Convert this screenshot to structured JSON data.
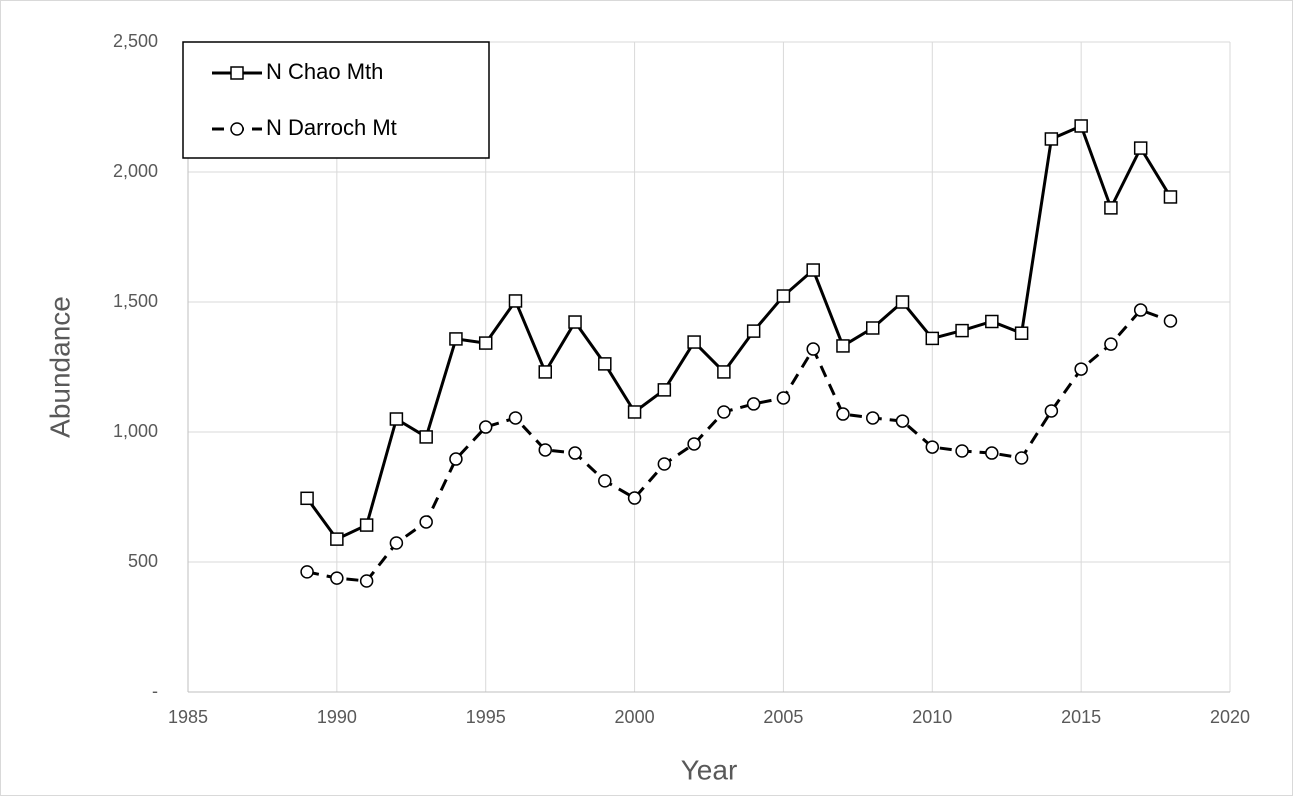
{
  "chart_data": {
    "type": "line",
    "x_label": "Year",
    "y_label": "Abundance",
    "x": [
      1989,
      1990,
      1991,
      1992,
      1993,
      1994,
      1995,
      1996,
      1997,
      1998,
      1999,
      2000,
      2001,
      2002,
      2003,
      2004,
      2005,
      2006,
      2007,
      2008,
      2009,
      2010,
      2011,
      2012,
      2013,
      2014,
      2015,
      2016,
      2017,
      2018
    ],
    "series": [
      {
        "name": "N Chao Mth",
        "color": "#000000",
        "marker": "square",
        "dash": false,
        "values": [
          745,
          588,
          642,
          1050,
          981,
          1358,
          1342,
          1504,
          1231,
          1423,
          1262,
          1077,
          1162,
          1346,
          1231,
          1388,
          1523,
          1623,
          1331,
          1400,
          1500,
          1360,
          1390,
          1425,
          1380,
          2127,
          2177,
          1862,
          2092,
          1904
        ]
      },
      {
        "name": "N Darroch Mt",
        "color": "#000000",
        "marker": "circle",
        "dash": true,
        "values": [
          462,
          438,
          427,
          573,
          654,
          896,
          1019,
          1054,
          931,
          919,
          812,
          746,
          877,
          954,
          1077,
          1108,
          1131,
          1319,
          1069,
          1054,
          1042,
          942,
          927,
          919,
          900,
          1081,
          1242,
          1338,
          1469,
          1427
        ]
      }
    ],
    "xlim": [
      1985,
      2020
    ],
    "xticks": [
      1985,
      1990,
      1995,
      2000,
      2005,
      2010,
      2015,
      2020
    ],
    "ylim": [
      0,
      2500
    ],
    "yticks": [
      {
        "value": 0,
        "label": "-"
      },
      500,
      {
        "value": 1000,
        "label": "1,000"
      },
      {
        "value": 1500,
        "label": "1,500"
      },
      {
        "value": 2000,
        "label": "2,000"
      },
      {
        "value": 2500,
        "label": "2,500"
      }
    ],
    "grid": true,
    "legend": "upper left"
  }
}
